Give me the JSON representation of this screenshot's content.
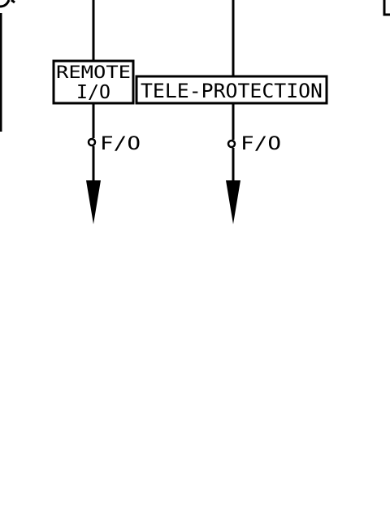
{
  "colors": {
    "ink": "#000000",
    "paper": "#ffffff"
  },
  "boxes": {
    "remote_io": {
      "line1": "REMOTE",
      "line2": "I/O"
    },
    "teleprotection": {
      "label": "TELE-PROTECTION"
    }
  },
  "links": [
    {
      "id": "remote-io-link",
      "label": "F/O"
    },
    {
      "id": "teleprotection-link",
      "label": "F/O"
    }
  ]
}
